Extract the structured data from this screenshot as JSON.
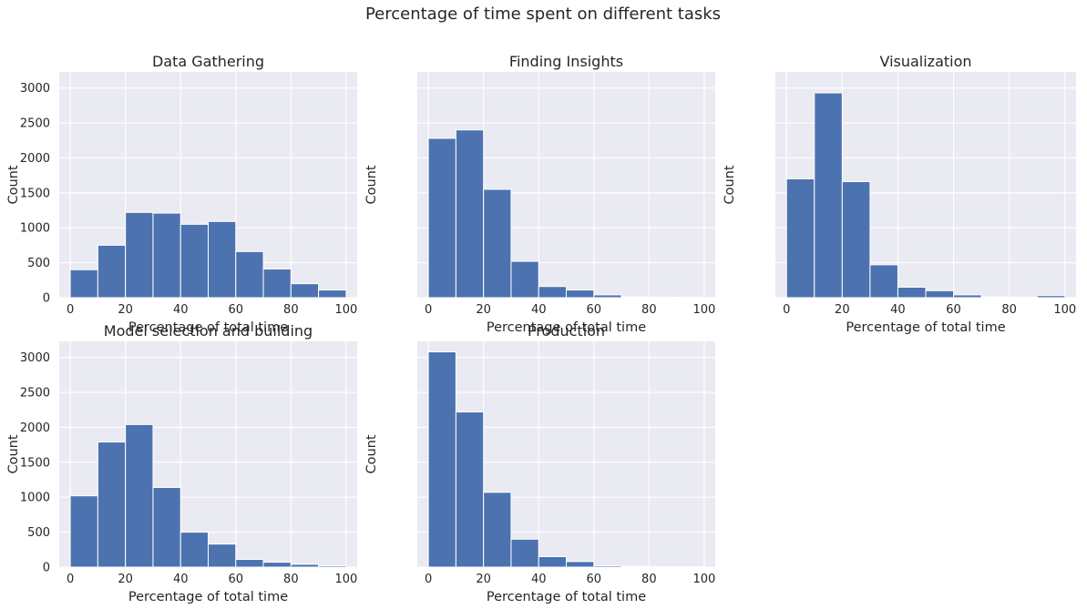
{
  "figure": {
    "title": "Percentage of time spent on different tasks",
    "background": "#ffffff",
    "axes_background": "#eaeaf2",
    "bar_color": "#4c72b0",
    "grid_color": "#ffffff"
  },
  "chart_data": [
    {
      "type": "bar",
      "title": "Data Gathering",
      "xlabel": "Percentage of total time",
      "ylabel": "Count",
      "bin_edges": [
        0,
        10,
        20,
        30,
        40,
        50,
        60,
        70,
        80,
        90,
        100
      ],
      "values": [
        400,
        750,
        1220,
        1210,
        1050,
        1090,
        660,
        410,
        200,
        110
      ],
      "xlim": [
        -4,
        104
      ],
      "ylim": [
        0,
        3230
      ],
      "xticks": [
        0,
        20,
        40,
        60,
        80,
        100
      ],
      "yticks": [
        0,
        500,
        1000,
        1500,
        2000,
        2500,
        3000
      ],
      "show_ytick_labels": true,
      "grid": true
    },
    {
      "type": "bar",
      "title": "Finding Insights",
      "xlabel": "Percentage of total time",
      "ylabel": "Count",
      "bin_edges": [
        0,
        10,
        20,
        30,
        40,
        50,
        60,
        70,
        80,
        90,
        100
      ],
      "values": [
        2280,
        2400,
        1550,
        520,
        160,
        110,
        40,
        10,
        5,
        5
      ],
      "xlim": [
        -4,
        104
      ],
      "ylim": [
        0,
        3230
      ],
      "xticks": [
        0,
        20,
        40,
        60,
        80,
        100
      ],
      "yticks": [
        0,
        500,
        1000,
        1500,
        2000,
        2500,
        3000
      ],
      "show_ytick_labels": false,
      "grid": true
    },
    {
      "type": "bar",
      "title": "Visualization",
      "xlabel": "Percentage of total time",
      "ylabel": "Count",
      "bin_edges": [
        0,
        10,
        20,
        30,
        40,
        50,
        60,
        70,
        80,
        90,
        100
      ],
      "values": [
        1700,
        2930,
        1660,
        470,
        150,
        100,
        40,
        10,
        5,
        30
      ],
      "xlim": [
        -4,
        104
      ],
      "ylim": [
        0,
        3230
      ],
      "xticks": [
        0,
        20,
        40,
        60,
        80,
        100
      ],
      "yticks": [
        0,
        500,
        1000,
        1500,
        2000,
        2500,
        3000
      ],
      "show_ytick_labels": false,
      "grid": true
    },
    {
      "type": "bar",
      "title": "Model selection and building",
      "xlabel": "Percentage of total time",
      "ylabel": "Count",
      "bin_edges": [
        0,
        10,
        20,
        30,
        40,
        50,
        60,
        70,
        80,
        90,
        100
      ],
      "values": [
        1020,
        1790,
        2040,
        1140,
        500,
        330,
        110,
        70,
        40,
        20
      ],
      "xlim": [
        -4,
        104
      ],
      "ylim": [
        0,
        3230
      ],
      "xticks": [
        0,
        20,
        40,
        60,
        80,
        100
      ],
      "yticks": [
        0,
        500,
        1000,
        1500,
        2000,
        2500,
        3000
      ],
      "show_ytick_labels": true,
      "grid": true
    },
    {
      "type": "bar",
      "title": "Production",
      "xlabel": "Percentage of total time",
      "ylabel": "Count",
      "bin_edges": [
        0,
        10,
        20,
        30,
        40,
        50,
        60,
        70,
        80,
        90,
        100
      ],
      "values": [
        3080,
        2220,
        1070,
        400,
        150,
        80,
        20,
        10,
        5,
        5
      ],
      "xlim": [
        -4,
        104
      ],
      "ylim": [
        0,
        3230
      ],
      "xticks": [
        0,
        20,
        40,
        60,
        80,
        100
      ],
      "yticks": [
        0,
        500,
        1000,
        1500,
        2000,
        2500,
        3000
      ],
      "show_ytick_labels": false,
      "grid": true
    }
  ]
}
